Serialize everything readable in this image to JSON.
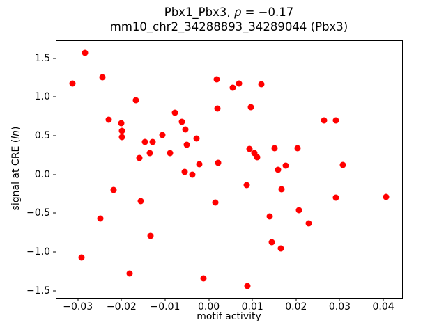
{
  "title": {
    "line1_prefix": "Pbx1_Pbx3, ",
    "line1_rho": "ρ",
    "line1_suffix": " = −0.17",
    "line2": "mm10_chr2_34288893_34289044 (Pbx3)"
  },
  "axes": {
    "xlabel": "motif activity",
    "ylabel_prefix": "signal at CRE (",
    "ylabel_italic": "ln",
    "ylabel_suffix": ")"
  },
  "chart_data": {
    "type": "scatter",
    "title": "Pbx1_Pbx3, ρ = −0.17",
    "subtitle": "mm10_chr2_34288893_34289044 (Pbx3)",
    "xlabel": "motif activity",
    "ylabel": "signal at CRE (ln)",
    "legend": null,
    "grid": false,
    "marker_color": "#ff0000",
    "frame_color": "#000000",
    "xlim": [
      -0.0349,
      0.0443
    ],
    "ylim": [
      -1.59,
      1.72
    ],
    "x_tick_values": [
      -0.03,
      -0.02,
      -0.01,
      0.0,
      0.01,
      0.02,
      0.03,
      0.04
    ],
    "x_tick_labels": [
      "−0.03",
      "−0.02",
      "−0.01",
      "0.00",
      "0.01",
      "0.02",
      "0.03",
      "0.04"
    ],
    "y_tick_values": [
      -1.5,
      -1.0,
      -0.5,
      0.0,
      0.5,
      1.0,
      1.5
    ],
    "y_tick_labels": [
      "−1.5",
      "−1.0",
      "−0.5",
      "0.0",
      "0.5",
      "1.0",
      "1.5"
    ],
    "points": [
      [
        -0.0283,
        1.57
      ],
      [
        -0.0313,
        1.17
      ],
      [
        -0.0244,
        1.25
      ],
      [
        -0.0167,
        0.96
      ],
      [
        -0.023,
        0.71
      ],
      [
        -0.02,
        0.66
      ],
      [
        -0.0199,
        0.56
      ],
      [
        -0.0199,
        0.48
      ],
      [
        -0.0106,
        0.51
      ],
      [
        -0.0147,
        0.42
      ],
      [
        -0.0128,
        0.42
      ],
      [
        -0.0135,
        0.28
      ],
      [
        -0.0159,
        0.21
      ],
      [
        -0.0078,
        0.8
      ],
      [
        0.0019,
        1.23
      ],
      [
        0.0055,
        1.12
      ],
      [
        0.0069,
        1.17
      ],
      [
        0.0121,
        1.16
      ],
      [
        0.002,
        0.85
      ],
      [
        0.0096,
        0.87
      ],
      [
        -0.0062,
        0.68
      ],
      [
        -0.0053,
        0.58
      ],
      [
        -0.0028,
        0.46
      ],
      [
        -0.0051,
        0.38
      ],
      [
        -0.0089,
        0.28
      ],
      [
        0.0093,
        0.33
      ],
      [
        0.0104,
        0.28
      ],
      [
        0.0111,
        0.22
      ],
      [
        0.015,
        0.34
      ],
      [
        -0.0021,
        0.13
      ],
      [
        0.0021,
        0.15
      ],
      [
        0.0264,
        0.7
      ],
      [
        0.0291,
        0.7
      ],
      [
        0.0204,
        0.34
      ],
      [
        0.0177,
        0.11
      ],
      [
        0.0158,
        0.06
      ],
      [
        0.0307,
        0.12
      ],
      [
        -0.0218,
        -0.2
      ],
      [
        -0.0156,
        -0.34
      ],
      [
        -0.0248,
        -0.57
      ],
      [
        -0.0134,
        -0.79
      ],
      [
        -0.0292,
        -1.07
      ],
      [
        -0.0181,
        -1.28
      ],
      [
        -0.0055,
        0.03
      ],
      [
        -0.0038,
        0.0
      ],
      [
        0.0087,
        -0.14
      ],
      [
        0.0015,
        -0.36
      ],
      [
        0.0139,
        -0.54
      ],
      [
        0.0144,
        -0.87
      ],
      [
        0.0165,
        -0.95
      ],
      [
        -0.0012,
        -1.34
      ],
      [
        0.0089,
        -1.44
      ],
      [
        0.0167,
        -0.19
      ],
      [
        0.0291,
        -0.3
      ],
      [
        0.0407,
        -0.29
      ],
      [
        0.0207,
        -0.46
      ],
      [
        0.0229,
        -0.63
      ]
    ]
  }
}
